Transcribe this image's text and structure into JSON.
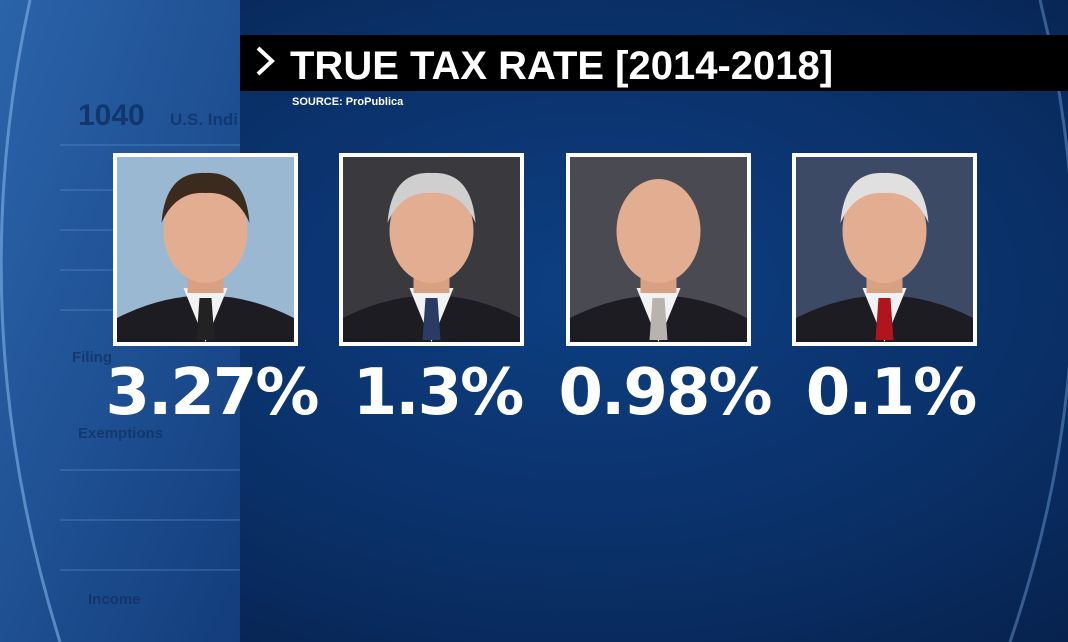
{
  "header": {
    "title": "TRUE TAX RATE [2014-2018]",
    "source": "SOURCE: ProPublica"
  },
  "rates": [
    "3.27%",
    "1.3%",
    "0.98%",
    "0.1%"
  ],
  "background_form": {
    "form_number": "1040",
    "form_title": "U.S. Indi",
    "labels": [
      "Filing",
      "Exemptions",
      "Income"
    ]
  }
}
